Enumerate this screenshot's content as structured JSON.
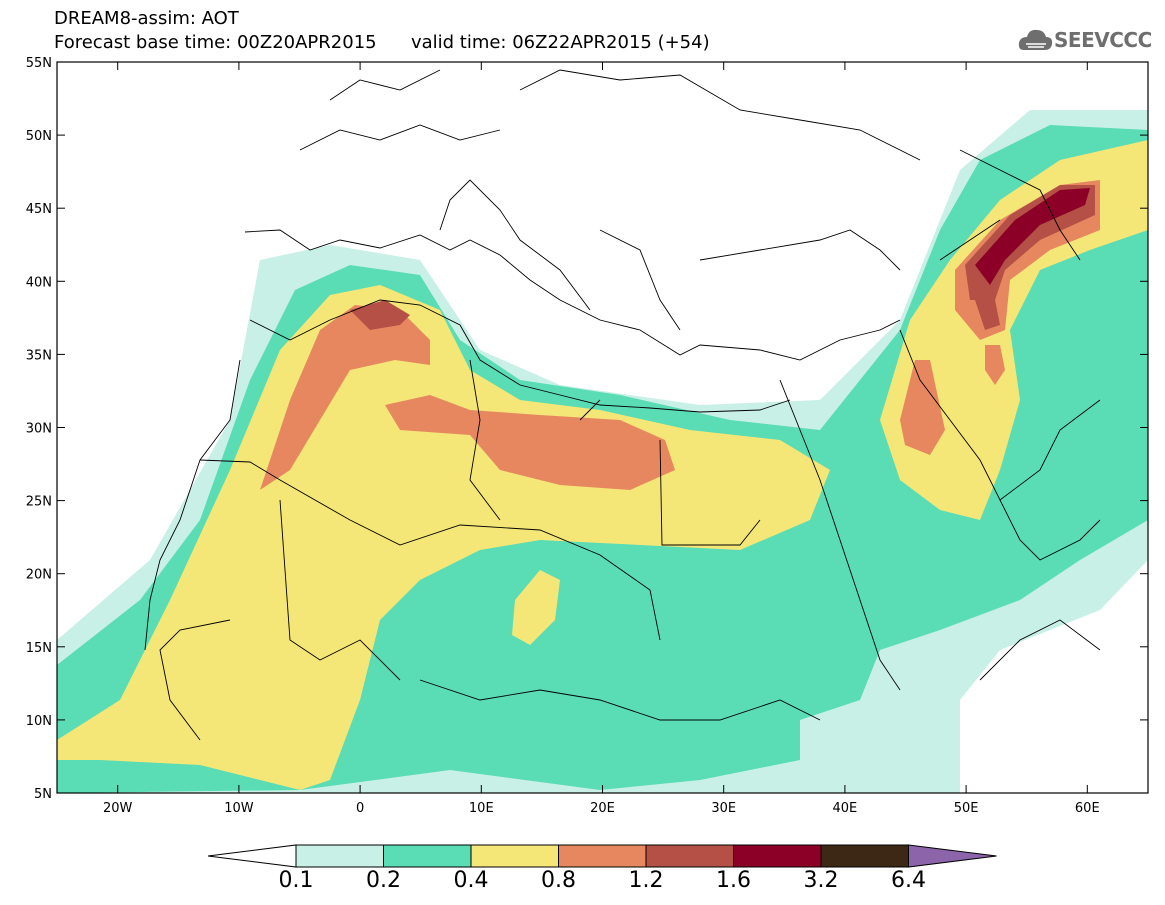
{
  "title": {
    "line1": "DREAM8-assim: AOT",
    "base_time": "Forecast base time: 00Z20APR2015",
    "valid_time": "valid time: 06Z22APR2015 (+54)"
  },
  "logo": {
    "text": "SEEVCCC",
    "icon": "cloud-icon"
  },
  "map": {
    "lat_ticks": [
      "55N",
      "50N",
      "45N",
      "40N",
      "35N",
      "30N",
      "25N",
      "20N",
      "15N",
      "10N",
      "5N"
    ],
    "lon_ticks": [
      "20W",
      "10W",
      "0",
      "10E",
      "20E",
      "30E",
      "40E",
      "50E",
      "60E"
    ]
  },
  "colorbar": {
    "levels": [
      "0.1",
      "0.2",
      "0.4",
      "0.8",
      "1.2",
      "1.6",
      "3.2",
      "6.4"
    ],
    "colors": [
      "#ffffff",
      "#c8f0e6",
      "#5adcb4",
      "#f5e678",
      "#e6875f",
      "#b45046",
      "#8c0028",
      "#3c2814",
      "#8c64aa"
    ]
  }
}
